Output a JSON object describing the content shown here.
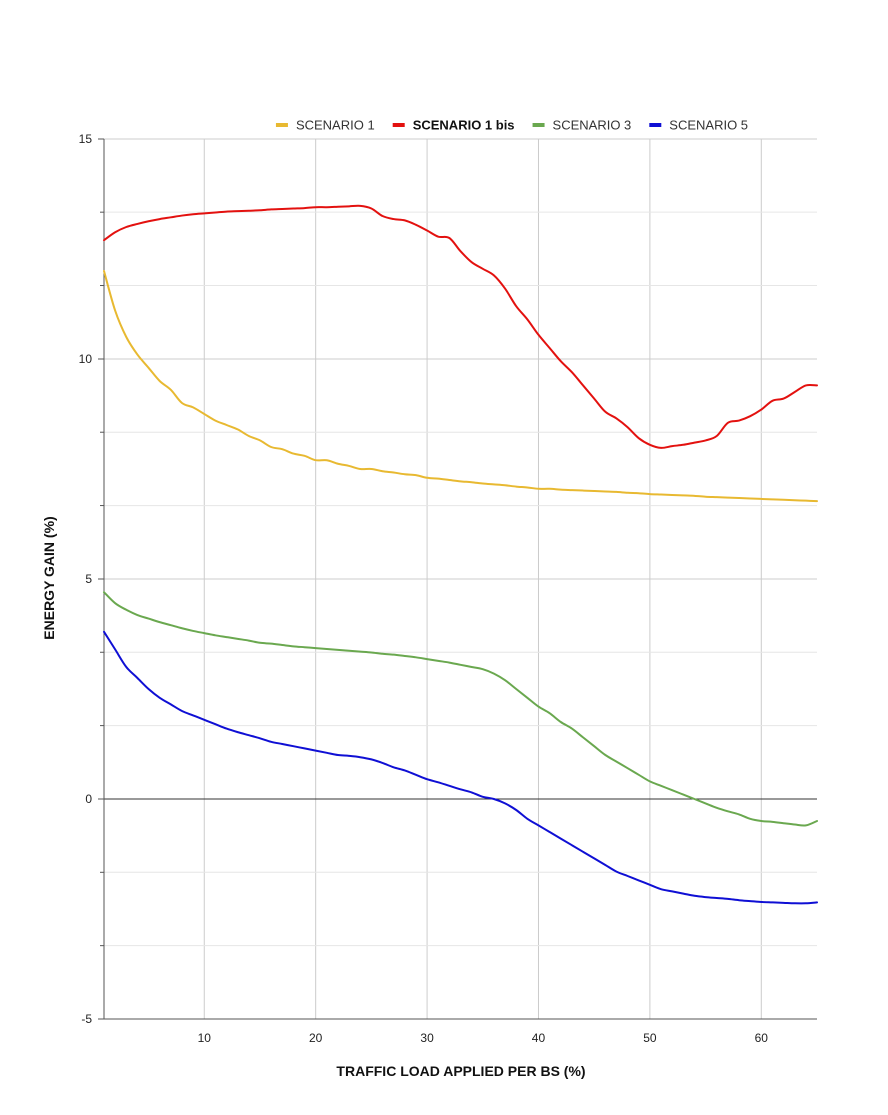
{
  "chart_data": {
    "type": "line",
    "xlabel": "TRAFFIC LOAD APPLIED PER BS (%)",
    "ylabel": "ENERGY GAIN (%)",
    "xlim": [
      1,
      65
    ],
    "ylim": [
      -5,
      15
    ],
    "x_ticks": [
      10,
      20,
      30,
      40,
      50,
      60
    ],
    "y_ticks": [
      -5,
      0,
      5,
      10,
      15
    ],
    "y_minor_step": 1.667,
    "grid": true,
    "legend_position": "top",
    "series": [
      {
        "name": "SCENARIO 1",
        "color": "#e8b931",
        "emphasis": false,
        "x": [
          1,
          2,
          3,
          4,
          5,
          6,
          7,
          8,
          9,
          10,
          11,
          12,
          13,
          14,
          15,
          16,
          17,
          18,
          19,
          20,
          21,
          22,
          23,
          24,
          25,
          26,
          27,
          28,
          29,
          30,
          31,
          32,
          33,
          34,
          35,
          36,
          37,
          38,
          39,
          40,
          41,
          42,
          43,
          44,
          45,
          46,
          47,
          48,
          49,
          50,
          51,
          52,
          53,
          54,
          55,
          56,
          57,
          58,
          59,
          60,
          61,
          62,
          63,
          64,
          65
        ],
        "values": [
          12.0,
          11.1,
          10.5,
          10.1,
          9.8,
          9.5,
          9.3,
          9.0,
          8.9,
          8.75,
          8.6,
          8.5,
          8.4,
          8.25,
          8.15,
          8.0,
          7.95,
          7.85,
          7.8,
          7.7,
          7.7,
          7.62,
          7.57,
          7.5,
          7.5,
          7.45,
          7.42,
          7.38,
          7.36,
          7.3,
          7.28,
          7.25,
          7.22,
          7.2,
          7.17,
          7.15,
          7.13,
          7.1,
          7.08,
          7.05,
          7.05,
          7.03,
          7.02,
          7.01,
          7.0,
          6.99,
          6.98,
          6.96,
          6.95,
          6.93,
          6.92,
          6.91,
          6.9,
          6.89,
          6.87,
          6.86,
          6.85,
          6.84,
          6.83,
          6.82,
          6.81,
          6.8,
          6.79,
          6.78,
          6.77
        ]
      },
      {
        "name": "SCENARIO 1 bis",
        "color": "#e3110f",
        "emphasis": true,
        "x": [
          1,
          2,
          3,
          4,
          5,
          6,
          7,
          8,
          9,
          10,
          11,
          12,
          13,
          14,
          15,
          16,
          17,
          18,
          19,
          20,
          21,
          22,
          23,
          24,
          25,
          26,
          27,
          28,
          29,
          30,
          31,
          32,
          33,
          34,
          35,
          36,
          37,
          38,
          39,
          40,
          41,
          42,
          43,
          44,
          45,
          46,
          47,
          48,
          49,
          50,
          51,
          52,
          53,
          54,
          55,
          56,
          57,
          58,
          59,
          60,
          61,
          62,
          63,
          64,
          65
        ],
        "values": [
          12.7,
          12.88,
          13.0,
          13.07,
          13.13,
          13.18,
          13.22,
          13.26,
          13.29,
          13.31,
          13.33,
          13.35,
          13.36,
          13.37,
          13.38,
          13.4,
          13.41,
          13.42,
          13.43,
          13.45,
          13.45,
          13.46,
          13.47,
          13.48,
          13.42,
          13.25,
          13.18,
          13.15,
          13.05,
          12.92,
          12.78,
          12.75,
          12.45,
          12.2,
          12.05,
          11.9,
          11.6,
          11.2,
          10.9,
          10.55,
          10.25,
          9.95,
          9.7,
          9.4,
          9.1,
          8.8,
          8.65,
          8.45,
          8.2,
          8.05,
          7.98,
          8.02,
          8.05,
          8.1,
          8.15,
          8.25,
          8.55,
          8.6,
          8.7,
          8.85,
          9.05,
          9.1,
          9.25,
          9.4,
          9.4
        ]
      },
      {
        "name": "SCENARIO 3",
        "color": "#6aa84f",
        "emphasis": false,
        "x": [
          1,
          2,
          3,
          4,
          5,
          6,
          7,
          8,
          9,
          10,
          11,
          12,
          13,
          14,
          15,
          16,
          17,
          18,
          19,
          20,
          21,
          22,
          23,
          24,
          25,
          26,
          27,
          28,
          29,
          30,
          31,
          32,
          33,
          34,
          35,
          36,
          37,
          38,
          39,
          40,
          41,
          42,
          43,
          44,
          45,
          46,
          47,
          48,
          49,
          50,
          51,
          52,
          53,
          54,
          55,
          56,
          57,
          58,
          59,
          60,
          61,
          62,
          63,
          64,
          65
        ],
        "values": [
          4.7,
          4.45,
          4.3,
          4.18,
          4.1,
          4.02,
          3.95,
          3.88,
          3.82,
          3.77,
          3.72,
          3.68,
          3.64,
          3.6,
          3.55,
          3.53,
          3.5,
          3.47,
          3.45,
          3.43,
          3.41,
          3.39,
          3.37,
          3.35,
          3.33,
          3.3,
          3.28,
          3.25,
          3.22,
          3.18,
          3.14,
          3.1,
          3.05,
          3.0,
          2.95,
          2.85,
          2.7,
          2.5,
          2.3,
          2.1,
          1.95,
          1.75,
          1.6,
          1.4,
          1.2,
          1.0,
          0.85,
          0.7,
          0.55,
          0.4,
          0.3,
          0.2,
          0.1,
          0.0,
          -0.1,
          -0.2,
          -0.28,
          -0.35,
          -0.45,
          -0.5,
          -0.52,
          -0.55,
          -0.58,
          -0.6,
          -0.5
        ]
      },
      {
        "name": "SCENARIO 5",
        "color": "#0f0fd4",
        "emphasis": false,
        "x": [
          1,
          2,
          3,
          4,
          5,
          6,
          7,
          8,
          9,
          10,
          11,
          12,
          13,
          14,
          15,
          16,
          17,
          18,
          19,
          20,
          21,
          22,
          23,
          24,
          25,
          26,
          27,
          28,
          29,
          30,
          31,
          32,
          33,
          34,
          35,
          36,
          37,
          38,
          39,
          40,
          41,
          42,
          43,
          44,
          45,
          46,
          47,
          48,
          49,
          50,
          51,
          52,
          53,
          54,
          55,
          56,
          57,
          58,
          59,
          60,
          61,
          62,
          63,
          64,
          65
        ],
        "values": [
          3.8,
          3.4,
          3.0,
          2.75,
          2.5,
          2.3,
          2.15,
          2.0,
          1.9,
          1.8,
          1.7,
          1.6,
          1.52,
          1.45,
          1.38,
          1.3,
          1.25,
          1.2,
          1.15,
          1.1,
          1.05,
          1.0,
          0.98,
          0.95,
          0.9,
          0.82,
          0.72,
          0.65,
          0.55,
          0.45,
          0.38,
          0.3,
          0.22,
          0.15,
          0.05,
          0.0,
          -0.1,
          -0.25,
          -0.45,
          -0.6,
          -0.75,
          -0.9,
          -1.05,
          -1.2,
          -1.35,
          -1.5,
          -1.65,
          -1.75,
          -1.85,
          -1.95,
          -2.05,
          -2.1,
          -2.15,
          -2.2,
          -2.23,
          -2.25,
          -2.27,
          -2.3,
          -2.32,
          -2.34,
          -2.35,
          -2.36,
          -2.37,
          -2.37,
          -2.35
        ]
      }
    ]
  }
}
